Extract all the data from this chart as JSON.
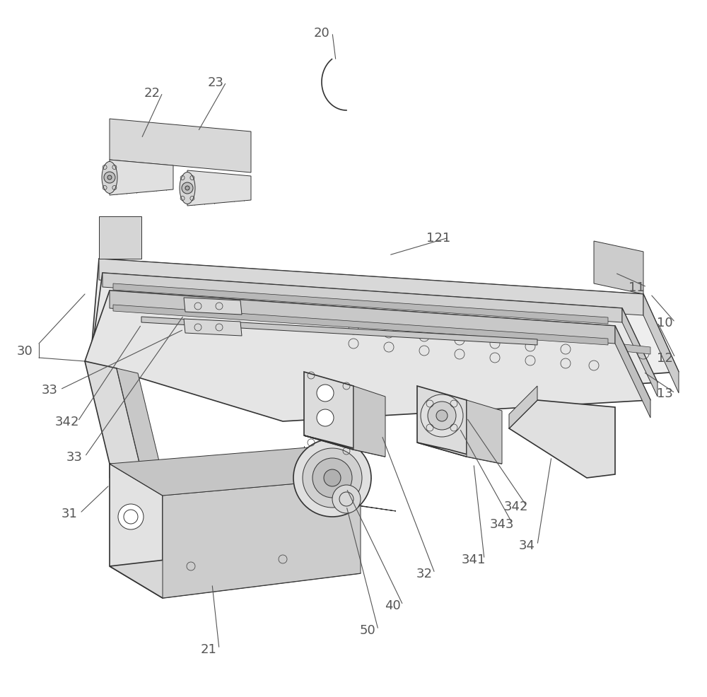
{
  "background_color": "#ffffff",
  "line_color": "#333333",
  "label_color": "#555555",
  "figure_width": 10.0,
  "figure_height": 9.87,
  "dpi": 100
}
